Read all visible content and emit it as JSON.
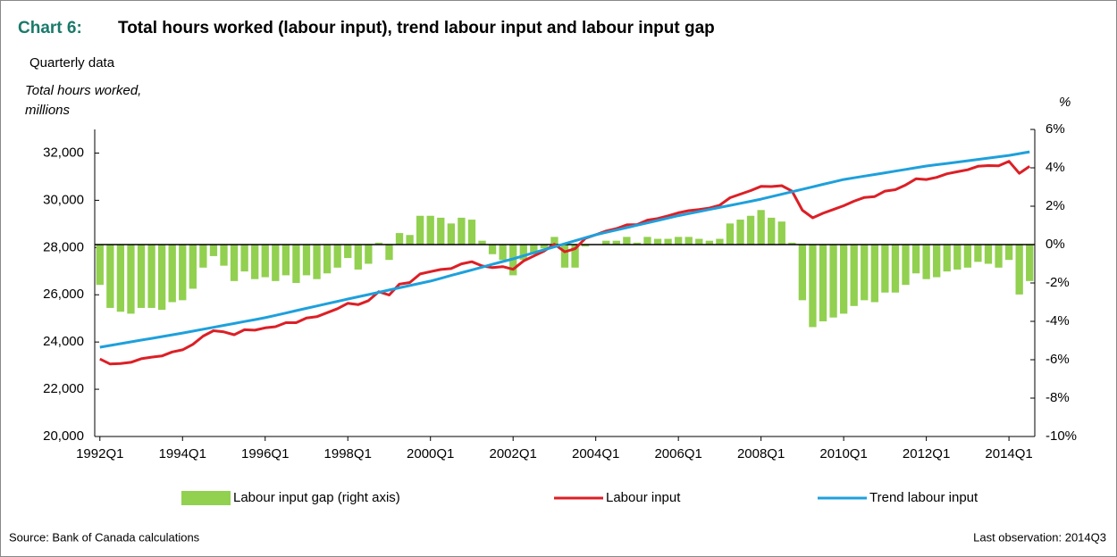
{
  "chart_data": {
    "type": "combo",
    "chart_label": "Chart 6:",
    "title": "Total hours worked (labour input), trend labour input and labour input gap",
    "subtitle": "Quarterly data",
    "ylabel": [
      "Total hours worked,",
      "millions"
    ],
    "y2label": "%",
    "source": "Source: Bank of Canada calculations",
    "note": "Last observation: 2014Q3",
    "legend": "bottom",
    "categories": [
      "1992Q1",
      null,
      null,
      null,
      null,
      null,
      null,
      null,
      "1994Q1",
      null,
      null,
      null,
      null,
      null,
      null,
      null,
      "1996Q1",
      null,
      null,
      null,
      null,
      null,
      null,
      null,
      "1998Q1",
      null,
      null,
      null,
      null,
      null,
      null,
      null,
      "2000Q1",
      null,
      null,
      null,
      null,
      null,
      null,
      null,
      "2002Q1",
      null,
      null,
      null,
      null,
      null,
      null,
      null,
      "2004Q1",
      null,
      null,
      null,
      null,
      null,
      null,
      null,
      "2006Q1",
      null,
      null,
      null,
      null,
      null,
      null,
      null,
      "2008Q1",
      null,
      null,
      null,
      null,
      null,
      null,
      null,
      "2010Q1",
      null,
      null,
      null,
      null,
      null,
      null,
      null,
      "2012Q1",
      null,
      null,
      null,
      null,
      null,
      null,
      null,
      "2014Q1",
      null,
      null
    ],
    "ylim": [
      20000,
      33000
    ],
    "yticks": [
      {
        "value": 20000,
        "label": "20,000"
      },
      {
        "value": 22000,
        "label": "22,000"
      },
      {
        "value": 24000,
        "label": "24,000"
      },
      {
        "value": 26000,
        "label": "26,000"
      },
      {
        "value": 28000,
        "label": "28,000"
      },
      {
        "value": 30000,
        "label": "30,000"
      },
      {
        "value": 32000,
        "label": "32,000"
      }
    ],
    "y2lim": [
      -10,
      6
    ],
    "y2ticks": [
      {
        "value": -10,
        "label": "-10%"
      },
      {
        "value": -8,
        "label": "-8%"
      },
      {
        "value": -6,
        "label": "-6%"
      },
      {
        "value": -4,
        "label": "-4%"
      },
      {
        "value": -2,
        "label": "-2%"
      },
      {
        "value": 0,
        "label": "0%"
      },
      {
        "value": 2,
        "label": "2%"
      },
      {
        "value": 4,
        "label": "4%"
      },
      {
        "value": 6,
        "label": "6%"
      }
    ],
    "series": [
      {
        "name": "Labour input gap (right axis)",
        "type": "bar",
        "axis": "y2",
        "color": "#92d050",
        "values": [
          -2.1,
          -3.3,
          -3.5,
          -3.6,
          -3.3,
          -3.3,
          -3.4,
          -3.0,
          -2.9,
          -2.3,
          -1.2,
          -0.6,
          -1.1,
          -1.9,
          -1.4,
          -1.8,
          -1.7,
          -1.9,
          -1.6,
          -2.0,
          -1.6,
          -1.8,
          -1.5,
          -1.2,
          -0.7,
          -1.3,
          -1.0,
          0.1,
          -0.8,
          0.6,
          0.5,
          1.5,
          1.5,
          1.4,
          1.1,
          1.4,
          1.3,
          0.2,
          -0.5,
          -0.8,
          -1.6,
          -0.8,
          -0.5,
          -0.2,
          0.4,
          -1.2,
          -1.2,
          -0.1,
          0.0,
          0.2,
          0.2,
          0.4,
          0.1,
          0.4,
          0.3,
          0.3,
          0.4,
          0.4,
          0.3,
          0.2,
          0.3,
          1.1,
          1.3,
          1.5,
          1.8,
          1.4,
          1.2,
          0.1,
          -2.9,
          -4.3,
          -4.0,
          -3.8,
          -3.6,
          -3.2,
          -2.9,
          -3.0,
          -2.5,
          -2.5,
          -2.1,
          -1.5,
          -1.8,
          -1.7,
          -1.4,
          -1.3,
          -1.2,
          -0.9,
          -1.0,
          -1.2,
          -0.8,
          -2.6,
          -1.9
        ]
      },
      {
        "name": "Labour input",
        "type": "line",
        "color": "#dc1f26",
        "values": [
          23280,
          23070,
          23090,
          23140,
          23290,
          23360,
          23410,
          23580,
          23670,
          23900,
          24250,
          24480,
          24430,
          24310,
          24520,
          24500,
          24600,
          24650,
          24820,
          24820,
          25020,
          25070,
          25240,
          25410,
          25640,
          25580,
          25750,
          26130,
          25990,
          26450,
          26520,
          26880,
          26980,
          27070,
          27110,
          27310,
          27400,
          27220,
          27150,
          27190,
          27080,
          27430,
          27640,
          27850,
          28140,
          27820,
          27950,
          28390,
          28540,
          28700,
          28800,
          28960,
          28970,
          29160,
          29230,
          29340,
          29470,
          29560,
          29610,
          29670,
          29790,
          30110,
          30260,
          30410,
          30590,
          30580,
          30620,
          30390,
          29580,
          29260,
          29450,
          29610,
          29770,
          29960,
          30120,
          30160,
          30390,
          30450,
          30650,
          30910,
          30880,
          30970,
          31120,
          31210,
          31290,
          31440,
          31470,
          31460,
          31650,
          31140,
          31440
        ]
      },
      {
        "name": "Trend labour input",
        "type": "line",
        "color": "#1ea0dc",
        "values": [
          23780,
          23855,
          23930,
          24005,
          24080,
          24155,
          24230,
          24305,
          24380,
          24461,
          24542,
          24623,
          24704,
          24785,
          24866,
          24947,
          25030,
          25129,
          25228,
          25327,
          25426,
          25525,
          25624,
          25723,
          25820,
          25915,
          26010,
          26105,
          26200,
          26295,
          26390,
          26485,
          26580,
          26698,
          26816,
          26934,
          27052,
          27170,
          27288,
          27406,
          27520,
          27648,
          27776,
          27904,
          28032,
          28160,
          28288,
          28416,
          28540,
          28641,
          28742,
          28843,
          28944,
          29045,
          29146,
          29247,
          29350,
          29437,
          29524,
          29611,
          29698,
          29785,
          29872,
          29959,
          30050,
          30154,
          30258,
          30362,
          30466,
          30570,
          30674,
          30778,
          30880,
          30951,
          31022,
          31093,
          31164,
          31235,
          31306,
          31377,
          31450,
          31506,
          31562,
          31618,
          31674,
          31730,
          31786,
          31842,
          31900,
          31975,
          32050
        ]
      }
    ]
  }
}
